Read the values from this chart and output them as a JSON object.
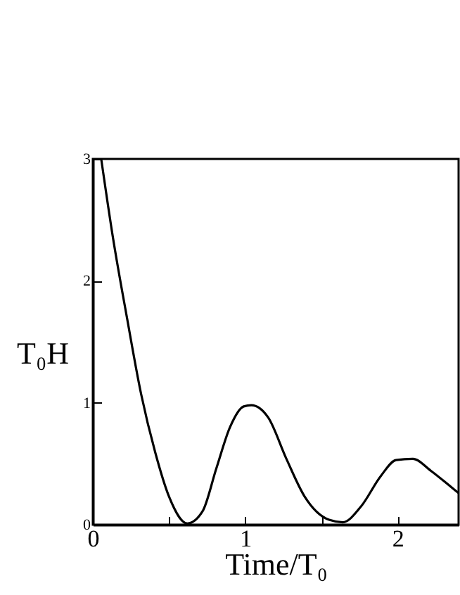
{
  "chart_data": {
    "type": "line",
    "xlabel": "Time/T₀",
    "ylabel": "T₀H",
    "x": [
      0.055,
      0.13,
      0.225,
      0.317,
      0.41,
      0.5,
      0.62,
      0.72,
      0.81,
      0.9,
      0.99,
      1.04,
      1.15,
      1.27,
      1.39,
      1.55,
      1.64,
      1.76,
      1.89,
      1.99,
      2.1,
      2.22,
      2.35,
      2.4
    ],
    "series": [
      {
        "color": "#000000",
        "values": [
          3.0,
          2.37,
          1.69,
          1.07,
          0.59,
          0.23,
          0.01,
          0.11,
          0.46,
          0.8,
          0.97,
          0.98,
          0.88,
          0.54,
          0.23,
          0.04,
          0.02,
          0.15,
          0.4,
          0.53,
          0.54,
          0.44,
          0.31,
          0.26
        ]
      }
    ],
    "xlim": [
      0,
      2.4
    ],
    "xticks": [
      0,
      {
        "value": 0.5,
        "label": null
      },
      1,
      {
        "value": 1.5,
        "label": null
      },
      2
    ],
    "ylim": [
      0,
      3
    ],
    "yticks": [
      0,
      1,
      2,
      3
    ],
    "grid": false,
    "legend": false,
    "marker": "none",
    "line_style": "solid"
  }
}
